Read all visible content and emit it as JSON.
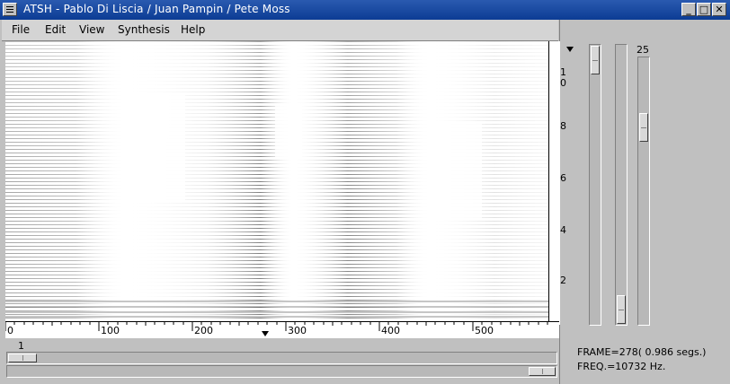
{
  "window": {
    "title": "ATSH - Pablo Di Liscia / Juan Pampin / Pete Moss",
    "minimize_glyph": "_",
    "maximize_glyph": "□",
    "close_glyph": "✕"
  },
  "menu": [
    "File",
    "Edit",
    "View",
    "Synthesis",
    "Help"
  ],
  "x_axis": {
    "ticks": [
      "0",
      "100",
      "200",
      "300",
      "400",
      "500"
    ]
  },
  "y_axis": {
    "ticks": [
      "0",
      "8",
      "6",
      "4",
      "2"
    ],
    "top_partial": "1"
  },
  "horizontal_scroll": {
    "label": "1"
  },
  "slider": {
    "value_label": "25"
  },
  "status": {
    "frame": "FRAME=278( 0.986 segs.)",
    "freq": "FREQ.=10732 Hz."
  },
  "colors": {
    "titlebar": "#1c4ca4",
    "panel": "#c0c0c0",
    "plot_bg": "#ffffff"
  }
}
